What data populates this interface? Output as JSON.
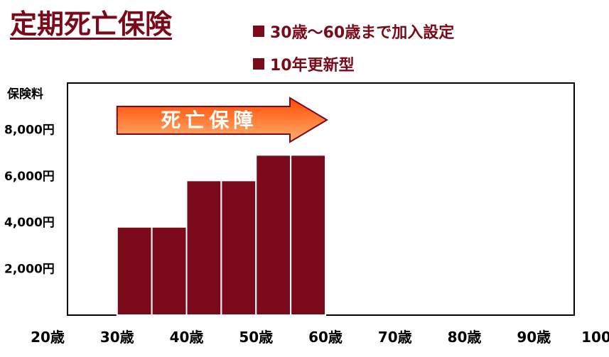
{
  "header": {
    "title": "定期死亡保険",
    "notes": [
      "30歳〜60歳まで加入設定",
      "10年更新型"
    ]
  },
  "colors": {
    "accent": "#7a0a1a",
    "arrow_top": "#ff4a00",
    "arrow_bottom": "#ffb070"
  },
  "chart_data": {
    "type": "bar",
    "ylabel": "保険料",
    "y_ticks": [
      {
        "value": 2000,
        "label": "2,000円"
      },
      {
        "value": 4000,
        "label": "4,000円"
      },
      {
        "value": 6000,
        "label": "6,000円"
      },
      {
        "value": 8000,
        "label": "8,000円"
      }
    ],
    "x_ticks": [
      "20歳",
      "30歳",
      "40歳",
      "50歳",
      "60歳",
      "70歳",
      "80歳",
      "90歳",
      "100歳"
    ],
    "xlim": [
      20,
      100
    ],
    "ylim": [
      0,
      10000
    ],
    "bars": [
      {
        "from": 30,
        "to": 35,
        "value": 3800
      },
      {
        "from": 35,
        "to": 40,
        "value": 3800
      },
      {
        "from": 40,
        "to": 45,
        "value": 5800
      },
      {
        "from": 45,
        "to": 50,
        "value": 5800
      },
      {
        "from": 50,
        "to": 55,
        "value": 6900
      },
      {
        "from": 55,
        "to": 60,
        "value": 6900
      }
    ],
    "annotation": {
      "text": "死亡保障",
      "from": 30,
      "to": 60
    }
  }
}
